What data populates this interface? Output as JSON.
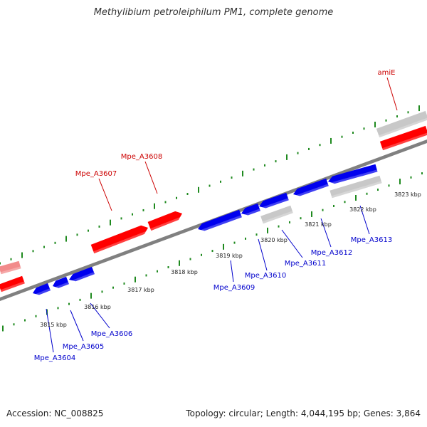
{
  "title": "Methylibium petroleiphilum PM1, complete genome",
  "footer": {
    "accession": "Accession: NC_008825",
    "summary": "Topology: circular; Length: 4,044,195 bp; Genes: 3,864"
  },
  "colors": {
    "forward_gene": "#ff0000",
    "forward_gene_faded": "#f28b8b",
    "reverse_gene": "#0000ee",
    "other_gene": "#c8c8c8",
    "backbone": "#808080",
    "ticks": "#1f8a1f",
    "forward_label": "#cc0000",
    "reverse_label": "#0000cc"
  },
  "scale_kbp": [
    {
      "label": "3815 kbp",
      "kbp": 3815
    },
    {
      "label": "3816 kbp",
      "kbp": 3816
    },
    {
      "label": "3817 kbp",
      "kbp": 3817
    },
    {
      "label": "3818 kbp",
      "kbp": 3818
    },
    {
      "label": "3819 kbp",
      "kbp": 3819
    },
    {
      "label": "3820 kbp",
      "kbp": 3820
    },
    {
      "label": "3821 kbp",
      "kbp": 3821
    },
    {
      "label": "3822 kbp",
      "kbp": 3822
    },
    {
      "label": "3823 kbp",
      "kbp": 3823
    }
  ],
  "forward_labels": [
    "Mpe_A3607",
    "Mpe_A3608",
    "amiE"
  ],
  "reverse_labels": [
    "Mpe_A3604",
    "Mpe_A3605",
    "Mpe_A3606",
    "Mpe_A3609",
    "Mpe_A3610",
    "Mpe_A3611",
    "Mpe_A3612",
    "Mpe_A3613"
  ]
}
